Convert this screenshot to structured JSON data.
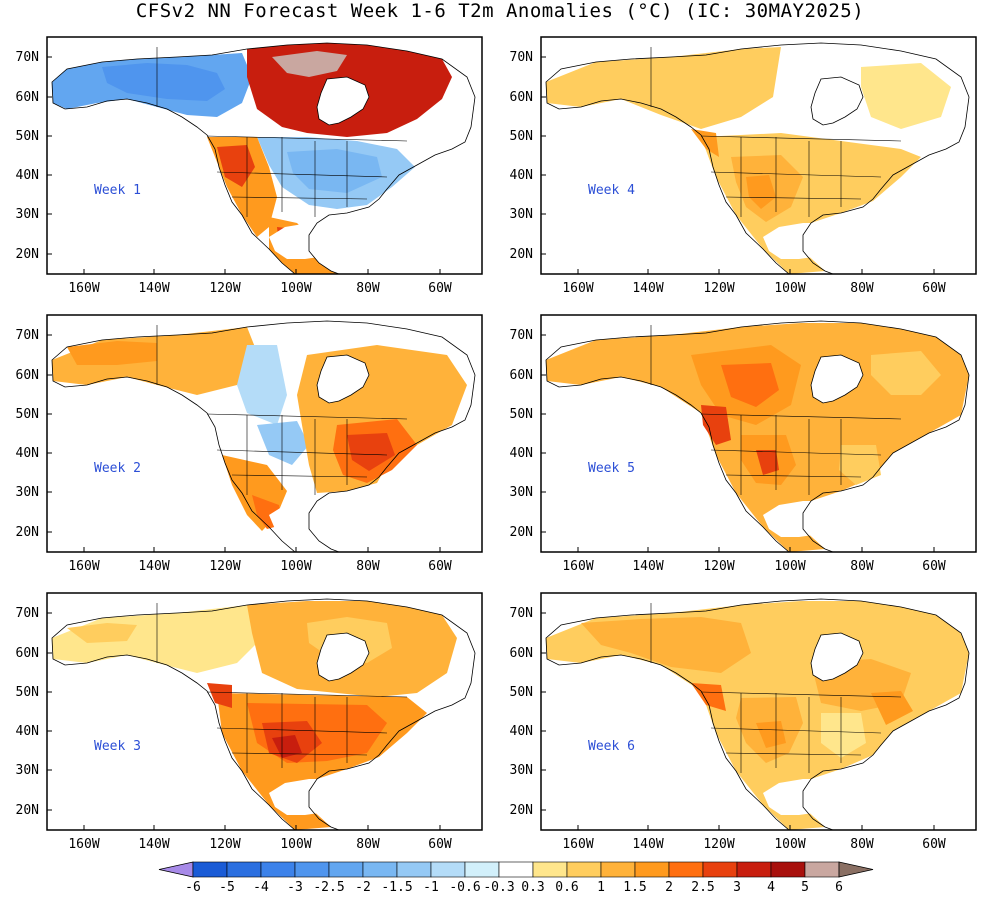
{
  "title": "CFSv2 NN Forecast Week 1-6 T2m Anomalies (°C) (IC: 30MAY2025)",
  "lat_labels": [
    "70N",
    "60N",
    "50N",
    "40N",
    "30N",
    "20N"
  ],
  "lon_labels": [
    "160W",
    "140W",
    "120W",
    "100W",
    "80W",
    "60W"
  ],
  "panels": [
    {
      "label": "Week 1",
      "pattern": "cold-east-warm-west-hot-canada"
    },
    {
      "label": "Week 4",
      "pattern": "mild-warm"
    },
    {
      "label": "Week 2",
      "pattern": "warm-east"
    },
    {
      "label": "Week 5",
      "pattern": "warm-widespread"
    },
    {
      "label": "Week 3",
      "pattern": "hot-central"
    },
    {
      "label": "Week 6",
      "pattern": "warm-moderate"
    }
  ],
  "colorbar": {
    "labels": [
      "-6",
      "-5",
      "-4",
      "-3",
      "-2.5",
      "-2",
      "-1.5",
      "-1",
      "-0.6",
      "-0.3",
      "0.3",
      "0.6",
      "1",
      "1.5",
      "2",
      "2.5",
      "3",
      "4",
      "5",
      "6"
    ],
    "colors": [
      "#a78ae8",
      "#1a5bd6",
      "#2b6fe0",
      "#3c82ea",
      "#4f95ee",
      "#62a6f0",
      "#79b7f2",
      "#95c9f5",
      "#b4dcf8",
      "#d2f0fb",
      "#ffffff",
      "#ffe68c",
      "#ffcd5e",
      "#ffb23a",
      "#ff9a1e",
      "#ff6f10",
      "#e8410e",
      "#c81e0e",
      "#a8100c",
      "#c9a7a0",
      "#8a6f63"
    ]
  }
}
